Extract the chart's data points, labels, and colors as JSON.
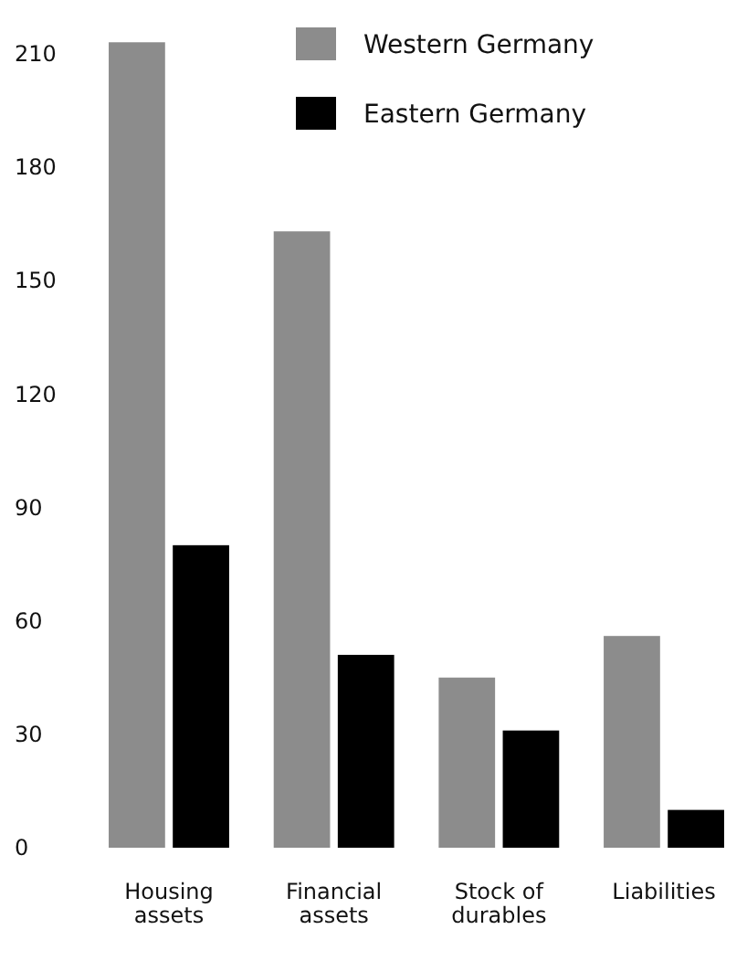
{
  "chart_data": {
    "type": "bar",
    "categories": [
      "Housing assets",
      "Financial assets",
      "Stock of durables",
      "Liabilities"
    ],
    "series": [
      {
        "name": "Western Germany",
        "color": "#8c8c8c",
        "values": [
          213,
          163,
          45,
          56
        ]
      },
      {
        "name": "Eastern Germany",
        "color": "#000000",
        "values": [
          80,
          51,
          31,
          10
        ]
      }
    ],
    "ylim": [
      0,
      215
    ],
    "yticks": [
      0,
      30,
      60,
      90,
      120,
      150,
      180,
      210
    ],
    "grid": false,
    "legend": "top right"
  }
}
